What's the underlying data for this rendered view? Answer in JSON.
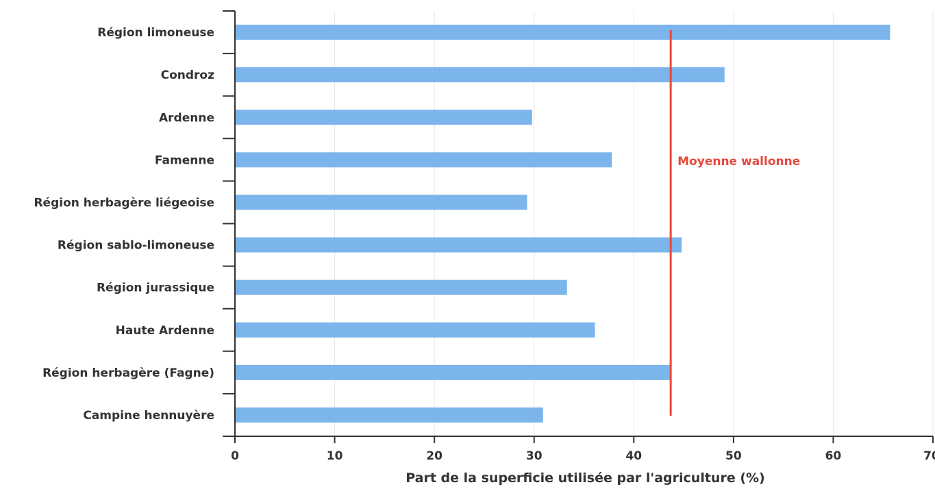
{
  "chart_data": {
    "type": "bar",
    "orientation": "horizontal",
    "categories": [
      "Région limoneuse",
      "Condroz",
      "Ardenne",
      "Famenne",
      "Région herbagère liégeoise",
      "Région sablo-limoneuse",
      "Région jurassique",
      "Haute Ardenne",
      "Région herbagère (Fagne)",
      "Campine hennuyère"
    ],
    "values": [
      65.7,
      49.1,
      29.8,
      37.8,
      29.3,
      44.8,
      33.3,
      36.1,
      43.7,
      30.9
    ],
    "xlabel": "Part de la superficie utilisée par l'agriculture (%)",
    "ylabel": "",
    "xlim": [
      0,
      70
    ],
    "xticks": [
      0,
      10,
      20,
      30,
      40,
      50,
      60,
      70
    ],
    "grid": "vertical",
    "bar_color": "#7cb5ec",
    "reference_line": {
      "label": "Moyenne wallonne",
      "value": 43.7,
      "color": "#e8473b"
    }
  }
}
